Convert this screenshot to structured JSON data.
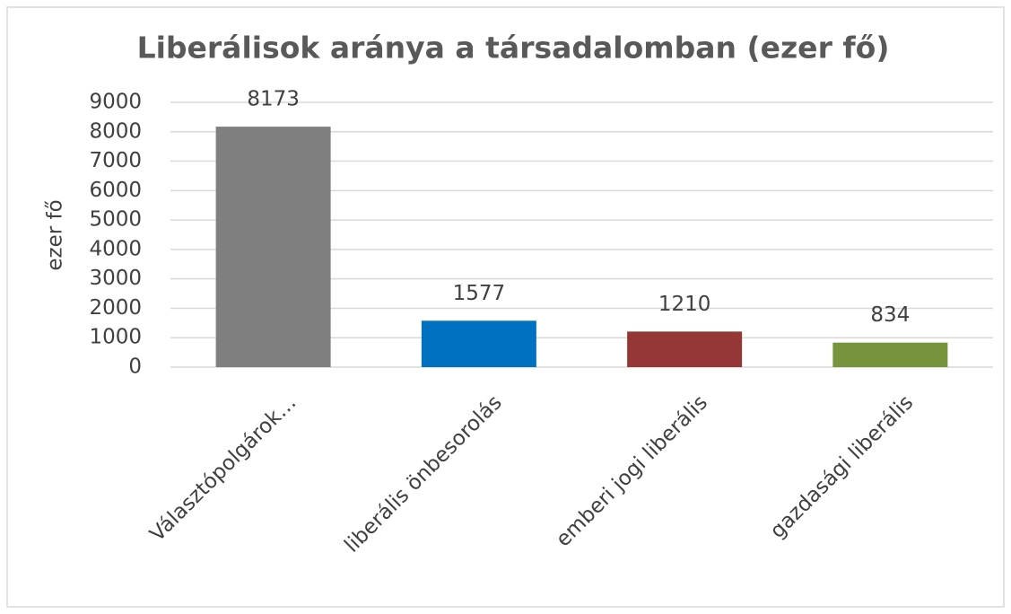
{
  "chart_data": {
    "type": "bar",
    "title": "Liberálisok aránya a társadalomban (ezer fő)",
    "y_label": "ezer fő",
    "categories": [
      "Választópolgárok…",
      "liberális önbesorolás",
      "emberi jogi liberális",
      "gazdasági liberális"
    ],
    "values": [
      8173,
      1577,
      1210,
      834
    ],
    "colors": [
      "#7f7f7f",
      "#0070c0",
      "#953735",
      "#77933c"
    ],
    "ylim": [
      0,
      9000
    ],
    "yticks": [
      0,
      1000,
      2000,
      3000,
      4000,
      5000,
      6000,
      7000,
      8000,
      9000
    ],
    "grid": true
  }
}
